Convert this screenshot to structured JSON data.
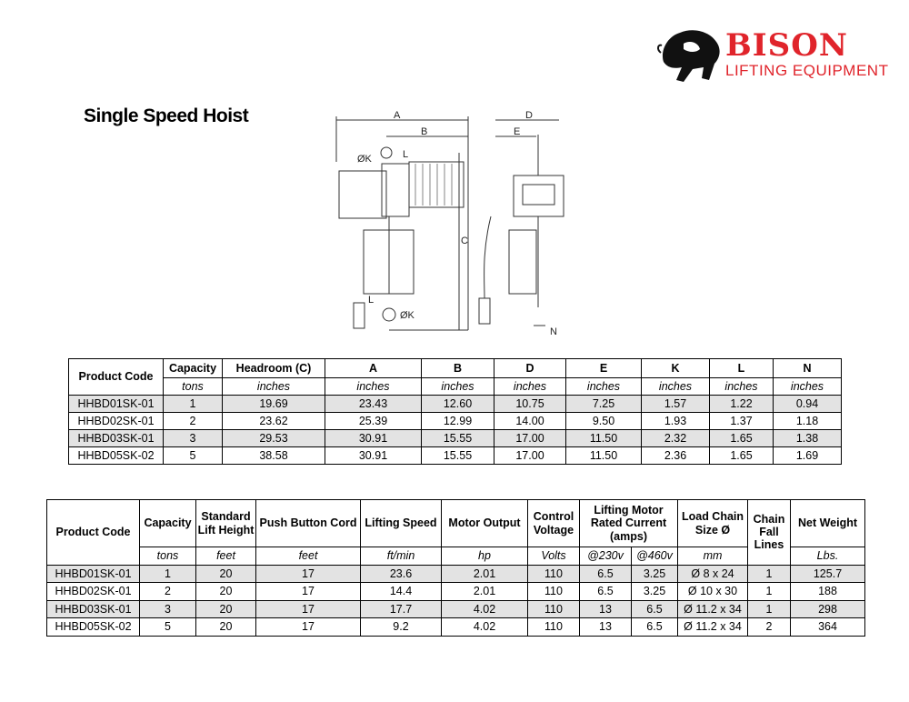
{
  "logo": {
    "brand": "BISON",
    "tagline": "LIFTING EQUIPMENT",
    "color": "#e0242b"
  },
  "title": "Single Speed Hoist",
  "drawing": {
    "labels": [
      "A",
      "B",
      "C",
      "D",
      "E",
      "ØK",
      "L",
      "N",
      "L",
      "ØK"
    ]
  },
  "dimensions_table": {
    "headers": [
      "Product Code",
      "Capacity",
      "Headroom (C)",
      "A",
      "B",
      "D",
      "E",
      "K",
      "L",
      "N"
    ],
    "units": [
      "",
      "tons",
      "inches",
      "inches",
      "inches",
      "inches",
      "inches",
      "inches",
      "inches",
      "inches"
    ],
    "rows": [
      [
        "HHBD01SK-01",
        "1",
        "19.69",
        "23.43",
        "12.60",
        "10.75",
        "7.25",
        "1.57",
        "1.22",
        "0.94"
      ],
      [
        "HHBD02SK-01",
        "2",
        "23.62",
        "25.39",
        "12.99",
        "14.00",
        "9.50",
        "1.93",
        "1.37",
        "1.18"
      ],
      [
        "HHBD03SK-01",
        "3",
        "29.53",
        "30.91",
        "15.55",
        "17.00",
        "11.50",
        "2.32",
        "1.65",
        "1.38"
      ],
      [
        "HHBD05SK-02",
        "5",
        "38.58",
        "30.91",
        "15.55",
        "17.00",
        "11.50",
        "2.36",
        "1.65",
        "1.69"
      ]
    ]
  },
  "specs_table": {
    "headers": [
      "Product Code",
      "Capacity",
      "Standard Lift Height",
      "Push Button Cord",
      "Lifting Speed",
      "Motor Output",
      "Control Voltage",
      "Lifting Motor Rated Current (amps)",
      "Load Chain Size Ø",
      "Chain Fall Lines",
      "Net Weight"
    ],
    "units": [
      "tons",
      "feet",
      "feet",
      "ft/min",
      "hp",
      "Volts",
      "@230v",
      "@460v",
      "mm",
      "Lbs."
    ],
    "rows": [
      [
        "HHBD01SK-01",
        "1",
        "20",
        "17",
        "23.6",
        "2.01",
        "110",
        "6.5",
        "3.25",
        "Ø 8 x 24",
        "1",
        "125.7"
      ],
      [
        "HHBD02SK-01",
        "2",
        "20",
        "17",
        "14.4",
        "2.01",
        "110",
        "6.5",
        "3.25",
        "Ø 10 x 30",
        "1",
        "188"
      ],
      [
        "HHBD03SK-01",
        "3",
        "20",
        "17",
        "17.7",
        "4.02",
        "110",
        "13",
        "6.5",
        "Ø 11.2 x 34",
        "1",
        "298"
      ],
      [
        "HHBD05SK-02",
        "5",
        "20",
        "17",
        "9.2",
        "4.02",
        "110",
        "13",
        "6.5",
        "Ø 11.2 x 34",
        "2",
        "364"
      ]
    ]
  }
}
